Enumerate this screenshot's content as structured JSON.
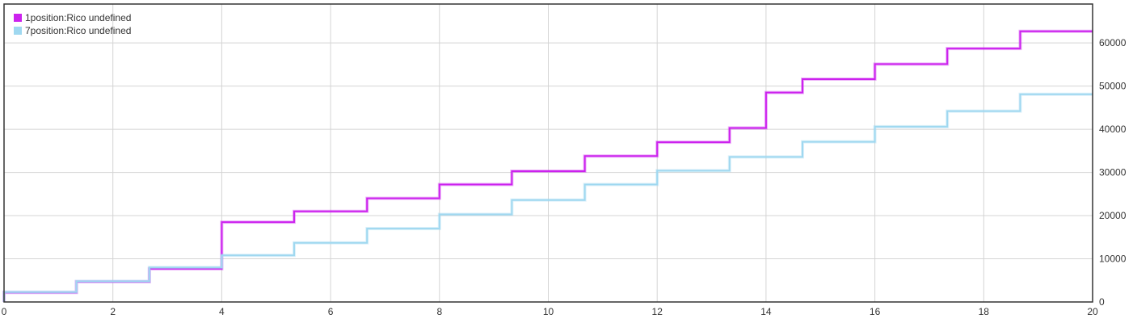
{
  "chart_data": {
    "type": "line",
    "step": true,
    "xlim": [
      0,
      20
    ],
    "ylim": [
      0,
      69000
    ],
    "x_ticks": [
      0,
      2,
      4,
      6,
      8,
      10,
      12,
      14,
      16,
      18,
      20
    ],
    "y_ticks": [
      0,
      10000,
      20000,
      30000,
      40000,
      50000,
      60000
    ],
    "y_axis_side": "right",
    "grid": true,
    "legend_position": "top-left",
    "series": [
      {
        "name": "1position:Rico undefined",
        "color": "#cc22ee",
        "x": [
          0,
          1.33,
          2.67,
          4,
          5.33,
          6.67,
          8,
          9.33,
          10.67,
          12,
          13.33,
          14,
          14.67,
          16,
          17.33,
          18.67,
          20
        ],
        "y": [
          2200,
          4700,
          7700,
          18500,
          21000,
          24000,
          27200,
          30300,
          33800,
          37000,
          40300,
          48500,
          51600,
          55100,
          58700,
          62700,
          62700
        ]
      },
      {
        "name": "7position:Rico undefined",
        "color": "#9fd8f0",
        "x": [
          0,
          1.33,
          2.67,
          4,
          5.33,
          6.67,
          8,
          9.33,
          10.67,
          12,
          13.33,
          14.67,
          16,
          17.33,
          18.67,
          20
        ],
        "y": [
          2300,
          4800,
          8000,
          10800,
          13700,
          17000,
          20300,
          23600,
          27200,
          30400,
          33600,
          37100,
          40600,
          44200,
          48100,
          48100
        ]
      }
    ]
  }
}
